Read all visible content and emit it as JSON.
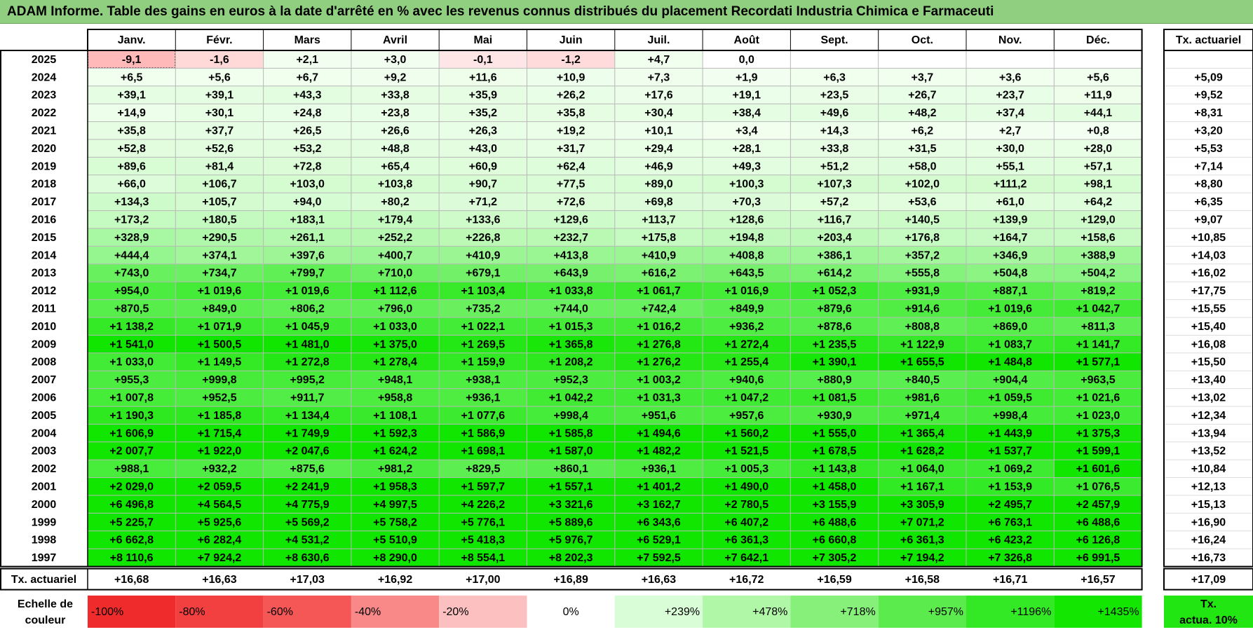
{
  "title": "ADAM Informe. Table des gains en euros à la date d'arrêté en % avec les revenus connus distribués du placement Recordati Industria Chimica e Farmaceuti",
  "colors": {
    "title_bg": "#8fcf7f",
    "grid": "#b8b8b8",
    "border": "#000000",
    "negative_base": "#ff0000",
    "positive_base": "#00e600"
  },
  "chart_data": {
    "type": "table",
    "title": "ADAM Informe. Table des gains en euros à la date d'arrêté en % avec les revenus connus distribués du placement Recordati Industria Chimica e Farmaceuti",
    "columns": [
      "Janv.",
      "Févr.",
      "Mars",
      "Avril",
      "Mai",
      "Juin",
      "Juil.",
      "Août",
      "Sept.",
      "Oct.",
      "Nov.",
      "Déc."
    ],
    "rate_header": "Tx. actuariel",
    "rows": [
      {
        "year": "2025",
        "values": [
          "-9,1",
          "-1,6",
          "+2,1",
          "+3,0",
          "-0,1",
          "-1,2",
          "+4,7",
          "0,0",
          "",
          "",
          "",
          ""
        ],
        "rate": ""
      },
      {
        "year": "2024",
        "values": [
          "+6,5",
          "+5,6",
          "+6,7",
          "+9,2",
          "+11,6",
          "+10,9",
          "+7,3",
          "+1,9",
          "+6,3",
          "+3,7",
          "+3,6",
          "+5,6"
        ],
        "rate": "+5,09"
      },
      {
        "year": "2023",
        "values": [
          "+39,1",
          "+39,1",
          "+43,3",
          "+33,8",
          "+35,9",
          "+26,2",
          "+17,6",
          "+19,1",
          "+23,5",
          "+26,7",
          "+23,7",
          "+11,9"
        ],
        "rate": "+9,52"
      },
      {
        "year": "2022",
        "values": [
          "+14,9",
          "+30,1",
          "+24,8",
          "+23,8",
          "+35,2",
          "+35,8",
          "+30,4",
          "+38,4",
          "+49,6",
          "+48,2",
          "+37,4",
          "+44,1"
        ],
        "rate": "+8,31"
      },
      {
        "year": "2021",
        "values": [
          "+35,8",
          "+37,7",
          "+26,5",
          "+26,6",
          "+26,3",
          "+19,2",
          "+10,1",
          "+3,4",
          "+14,3",
          "+6,2",
          "+2,7",
          "+0,8"
        ],
        "rate": "+3,20"
      },
      {
        "year": "2020",
        "values": [
          "+52,8",
          "+52,6",
          "+53,2",
          "+48,8",
          "+43,0",
          "+31,7",
          "+29,4",
          "+28,1",
          "+33,8",
          "+31,5",
          "+30,0",
          "+28,0"
        ],
        "rate": "+5,53"
      },
      {
        "year": "2019",
        "values": [
          "+89,6",
          "+81,4",
          "+72,8",
          "+65,4",
          "+60,9",
          "+62,4",
          "+46,9",
          "+49,3",
          "+51,2",
          "+58,0",
          "+55,1",
          "+57,1"
        ],
        "rate": "+7,14"
      },
      {
        "year": "2018",
        "values": [
          "+66,0",
          "+106,7",
          "+103,0",
          "+103,8",
          "+90,7",
          "+77,5",
          "+89,0",
          "+100,3",
          "+107,3",
          "+102,0",
          "+111,2",
          "+98,1"
        ],
        "rate": "+8,80"
      },
      {
        "year": "2017",
        "values": [
          "+134,3",
          "+105,7",
          "+94,0",
          "+80,2",
          "+71,2",
          "+72,6",
          "+69,8",
          "+70,3",
          "+57,2",
          "+53,6",
          "+61,0",
          "+64,2"
        ],
        "rate": "+6,35"
      },
      {
        "year": "2016",
        "values": [
          "+173,2",
          "+180,5",
          "+183,1",
          "+179,4",
          "+133,6",
          "+129,6",
          "+113,7",
          "+128,6",
          "+116,7",
          "+140,5",
          "+139,9",
          "+129,0"
        ],
        "rate": "+9,07"
      },
      {
        "year": "2015",
        "values": [
          "+328,9",
          "+290,5",
          "+261,1",
          "+252,2",
          "+226,8",
          "+232,7",
          "+175,8",
          "+194,8",
          "+203,4",
          "+176,8",
          "+164,7",
          "+158,6"
        ],
        "rate": "+10,85"
      },
      {
        "year": "2014",
        "values": [
          "+444,4",
          "+374,1",
          "+397,6",
          "+400,7",
          "+410,9",
          "+413,8",
          "+410,9",
          "+408,8",
          "+386,1",
          "+357,2",
          "+346,9",
          "+388,9"
        ],
        "rate": "+14,03"
      },
      {
        "year": "2013",
        "values": [
          "+743,0",
          "+734,7",
          "+799,7",
          "+710,0",
          "+679,1",
          "+643,9",
          "+616,2",
          "+643,5",
          "+614,2",
          "+555,8",
          "+504,8",
          "+504,2"
        ],
        "rate": "+16,02"
      },
      {
        "year": "2012",
        "values": [
          "+954,0",
          "+1 019,6",
          "+1 019,6",
          "+1 112,6",
          "+1 103,4",
          "+1 033,8",
          "+1 061,7",
          "+1 016,9",
          "+1 052,3",
          "+931,9",
          "+887,1",
          "+819,2"
        ],
        "rate": "+17,75"
      },
      {
        "year": "2011",
        "values": [
          "+870,5",
          "+849,0",
          "+806,2",
          "+796,0",
          "+735,2",
          "+744,0",
          "+742,4",
          "+849,9",
          "+879,6",
          "+914,6",
          "+1 019,6",
          "+1 042,7"
        ],
        "rate": "+15,55"
      },
      {
        "year": "2010",
        "values": [
          "+1 138,2",
          "+1 071,9",
          "+1 045,9",
          "+1 033,0",
          "+1 022,1",
          "+1 015,3",
          "+1 016,2",
          "+936,2",
          "+878,6",
          "+808,8",
          "+869,0",
          "+811,3"
        ],
        "rate": "+15,40"
      },
      {
        "year": "2009",
        "values": [
          "+1 541,0",
          "+1 500,5",
          "+1 481,0",
          "+1 375,0",
          "+1 269,5",
          "+1 365,8",
          "+1 276,8",
          "+1 272,4",
          "+1 235,5",
          "+1 122,9",
          "+1 083,7",
          "+1 141,7"
        ],
        "rate": "+16,08"
      },
      {
        "year": "2008",
        "values": [
          "+1 033,0",
          "+1 149,5",
          "+1 272,8",
          "+1 278,4",
          "+1 159,9",
          "+1 208,2",
          "+1 276,2",
          "+1 255,4",
          "+1 390,1",
          "+1 655,5",
          "+1 484,8",
          "+1 577,1"
        ],
        "rate": "+15,50"
      },
      {
        "year": "2007",
        "values": [
          "+955,3",
          "+999,8",
          "+995,2",
          "+948,1",
          "+938,1",
          "+952,3",
          "+1 003,2",
          "+940,6",
          "+880,9",
          "+840,5",
          "+904,4",
          "+963,5"
        ],
        "rate": "+13,40"
      },
      {
        "year": "2006",
        "values": [
          "+1 007,8",
          "+952,5",
          "+911,7",
          "+958,8",
          "+936,1",
          "+1 042,2",
          "+1 031,3",
          "+1 047,2",
          "+1 081,5",
          "+981,6",
          "+1 059,5",
          "+1 021,6"
        ],
        "rate": "+13,02"
      },
      {
        "year": "2005",
        "values": [
          "+1 190,3",
          "+1 185,8",
          "+1 134,4",
          "+1 108,1",
          "+1 077,6",
          "+998,4",
          "+951,6",
          "+957,6",
          "+930,9",
          "+971,4",
          "+998,4",
          "+1 023,0"
        ],
        "rate": "+12,34"
      },
      {
        "year": "2004",
        "values": [
          "+1 606,9",
          "+1 715,4",
          "+1 749,9",
          "+1 592,3",
          "+1 586,9",
          "+1 585,8",
          "+1 494,6",
          "+1 560,2",
          "+1 555,0",
          "+1 365,4",
          "+1 443,9",
          "+1 375,3"
        ],
        "rate": "+13,94"
      },
      {
        "year": "2003",
        "values": [
          "+2 007,7",
          "+1 922,0",
          "+2 047,6",
          "+1 624,2",
          "+1 698,1",
          "+1 587,0",
          "+1 482,2",
          "+1 521,5",
          "+1 678,5",
          "+1 628,2",
          "+1 537,7",
          "+1 599,1"
        ],
        "rate": "+13,52"
      },
      {
        "year": "2002",
        "values": [
          "+988,1",
          "+932,2",
          "+875,6",
          "+981,2",
          "+829,5",
          "+860,1",
          "+936,1",
          "+1 005,3",
          "+1 143,8",
          "+1 064,0",
          "+1 069,2",
          "+1 601,6"
        ],
        "rate": "+10,84"
      },
      {
        "year": "2001",
        "values": [
          "+2 029,0",
          "+2 059,5",
          "+2 241,9",
          "+1 958,3",
          "+1 597,7",
          "+1 557,1",
          "+1 401,2",
          "+1 490,0",
          "+1 458,0",
          "+1 167,1",
          "+1 153,9",
          "+1 076,5"
        ],
        "rate": "+12,13"
      },
      {
        "year": "2000",
        "values": [
          "+6 496,8",
          "+4 564,5",
          "+4 775,9",
          "+4 997,5",
          "+4 226,2",
          "+3 321,6",
          "+3 162,7",
          "+2 780,5",
          "+3 155,9",
          "+3 305,9",
          "+2 495,7",
          "+2 457,9"
        ],
        "rate": "+15,13"
      },
      {
        "year": "1999",
        "values": [
          "+5 225,7",
          "+5 925,6",
          "+5 569,2",
          "+5 758,2",
          "+5 776,1",
          "+5 889,6",
          "+6 343,6",
          "+6 407,2",
          "+6 488,6",
          "+7 071,2",
          "+6 763,1",
          "+6 488,6"
        ],
        "rate": "+16,90"
      },
      {
        "year": "1998",
        "values": [
          "+6 662,8",
          "+6 282,4",
          "+4 531,2",
          "+5 510,9",
          "+5 418,3",
          "+5 976,7",
          "+6 529,1",
          "+6 361,3",
          "+6 660,8",
          "+6 361,3",
          "+6 423,2",
          "+6 126,8"
        ],
        "rate": "+16,24"
      },
      {
        "year": "1997",
        "values": [
          "+8 110,6",
          "+7 924,2",
          "+8 630,6",
          "+8 290,0",
          "+8 554,1",
          "+8 202,3",
          "+7 592,5",
          "+7 642,1",
          "+7 305,2",
          "+7 194,2",
          "+7 326,8",
          "+6 991,5"
        ],
        "rate": "+16,73"
      }
    ],
    "footer": {
      "label": "Tx. actuariel",
      "values": [
        "+16,68",
        "+16,63",
        "+17,03",
        "+16,92",
        "+17,00",
        "+16,89",
        "+16,63",
        "+16,72",
        "+16,59",
        "+16,58",
        "+16,71",
        "+16,57"
      ],
      "rate": "+17,09"
    },
    "legend": {
      "label_line1": "Echelle de",
      "label_line2": "couleur",
      "items": [
        {
          "label": "-100%",
          "color": "#ef2b2b"
        },
        {
          "label": "-80%",
          "color": "#f23f3f"
        },
        {
          "label": "-60%",
          "color": "#f55656"
        },
        {
          "label": "-40%",
          "color": "#f98989"
        },
        {
          "label": "-20%",
          "color": "#fcc0c0"
        },
        {
          "label": "0%",
          "color": "#ffffff"
        },
        {
          "label": "+239%",
          "color": "#d9fdd6"
        },
        {
          "label": "+478%",
          "color": "#b0f7a8"
        },
        {
          "label": "+718%",
          "color": "#86f07a"
        },
        {
          "label": "+957%",
          "color": "#5beb4c"
        },
        {
          "label": "+1196%",
          "color": "#33e824"
        },
        {
          "label": "+1435%",
          "color": "#13e600"
        }
      ],
      "rate_line1": "Tx.",
      "rate_line2": "actua. 10%",
      "rate_color": "#22e611"
    }
  }
}
